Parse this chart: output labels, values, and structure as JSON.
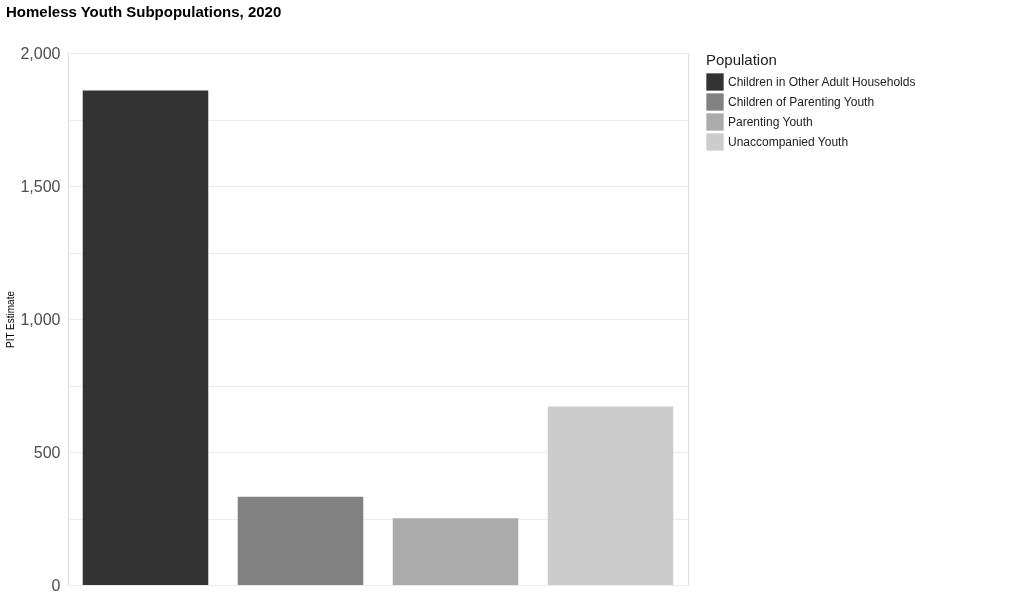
{
  "chart_data": {
    "type": "bar",
    "title": "Homeless Youth Subpopulations, 2020",
    "ylabel": "PIT Estimate",
    "legend_title": "Population",
    "categories": [
      null,
      null,
      null,
      null
    ],
    "series": [
      {
        "name": "Children in Other Adult Households",
        "color": "#333333",
        "values": [
          1859,
          null,
          null,
          null
        ]
      },
      {
        "name": "Children of Parenting Youth",
        "color": "#818181",
        "values": [
          null,
          332,
          null,
          null
        ]
      },
      {
        "name": "Parenting Youth",
        "color": "#ababab",
        "values": [
          null,
          null,
          251,
          null
        ]
      },
      {
        "name": "Unaccompanied Youth",
        "color": "#cccccc",
        "values": [
          null,
          null,
          null,
          671
        ]
      }
    ],
    "ylim": [
      0,
      2000
    ],
    "yticks": [
      0,
      {
        "value": 250,
        "label": null
      },
      500,
      {
        "value": 750,
        "label": null
      },
      {
        "value": 1000,
        "label": "1,000"
      },
      {
        "value": 1250,
        "label": null
      },
      {
        "value": 1500,
        "label": "1,500"
      },
      {
        "value": 1750,
        "label": null
      },
      {
        "value": 2000,
        "label": "2,000"
      }
    ],
    "grid": "y",
    "legend": "right"
  }
}
